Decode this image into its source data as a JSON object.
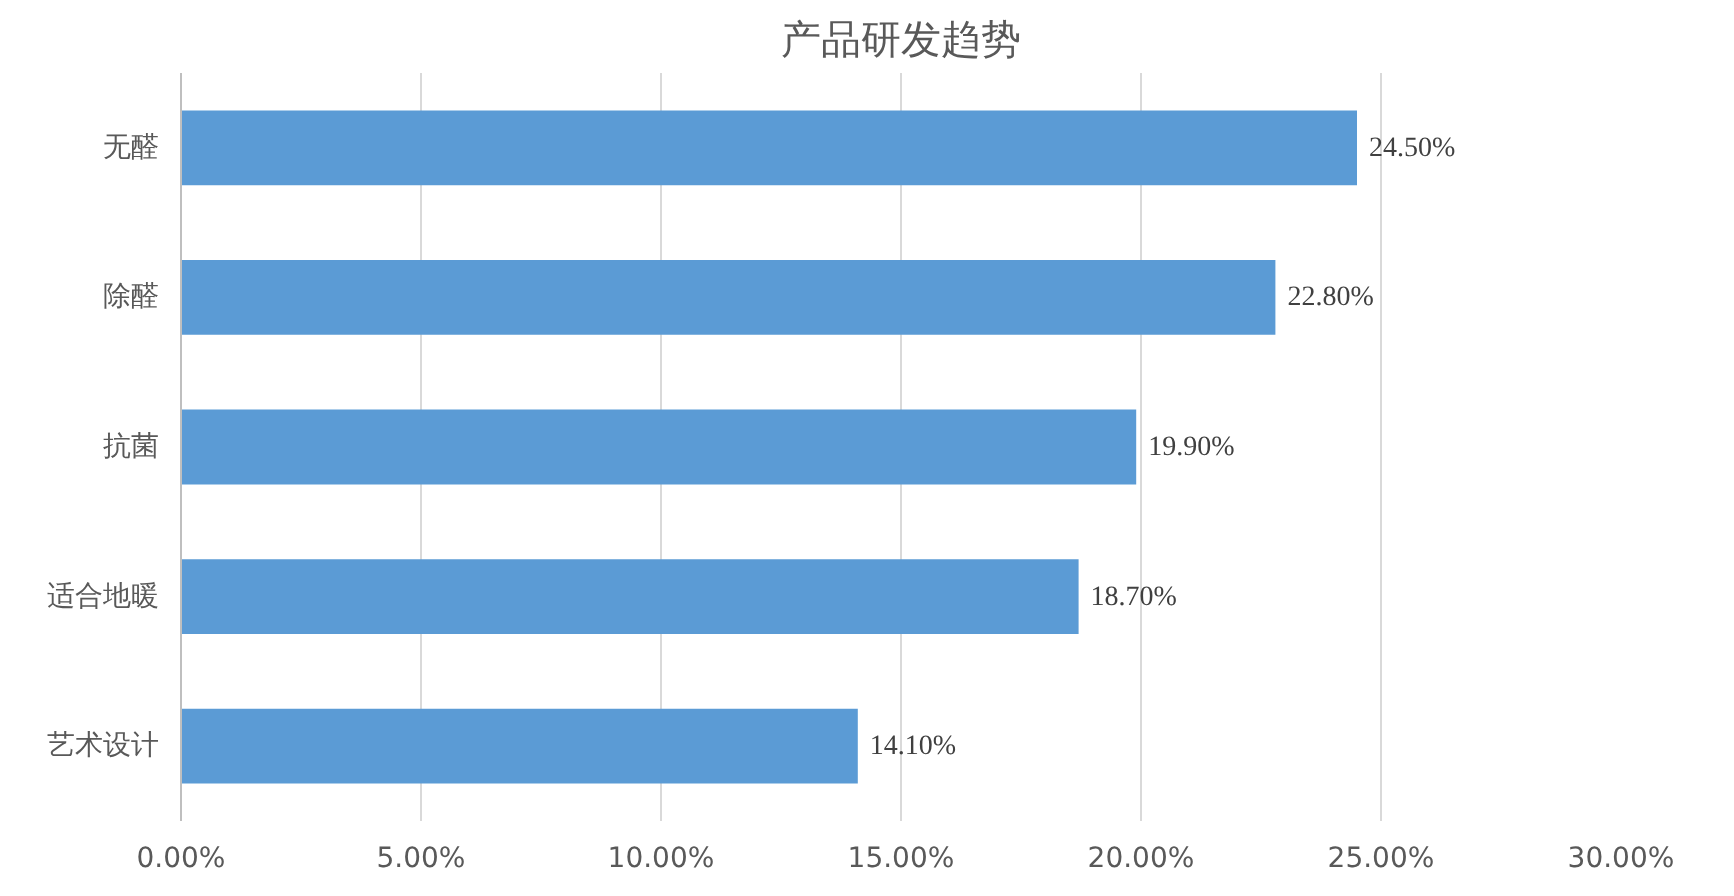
{
  "chart_data": {
    "type": "bar",
    "orientation": "horizontal",
    "title": "产品研发趋势",
    "categories": [
      "无醛",
      "除醛",
      "抗菌",
      "适合地暖",
      "艺术设计"
    ],
    "values": [
      24.5,
      22.8,
      19.9,
      18.7,
      14.1
    ],
    "value_labels": [
      "24.50%",
      "22.80%",
      "19.90%",
      "18.70%",
      "14.10%"
    ],
    "color": "#5b9bd5",
    "xlim": [
      0,
      30
    ],
    "xticks": [
      {
        "value": 0,
        "label": "0.00%"
      },
      {
        "value": 5,
        "label": "5.00%"
      },
      {
        "value": 10,
        "label": "10.00%"
      },
      {
        "value": 15,
        "label": "15.00%"
      },
      {
        "value": 20,
        "label": "20.00%"
      },
      {
        "value": 25,
        "label": "25.00%"
      },
      {
        "value": 30,
        "label": "30.00%"
      }
    ],
    "grid": "x"
  }
}
